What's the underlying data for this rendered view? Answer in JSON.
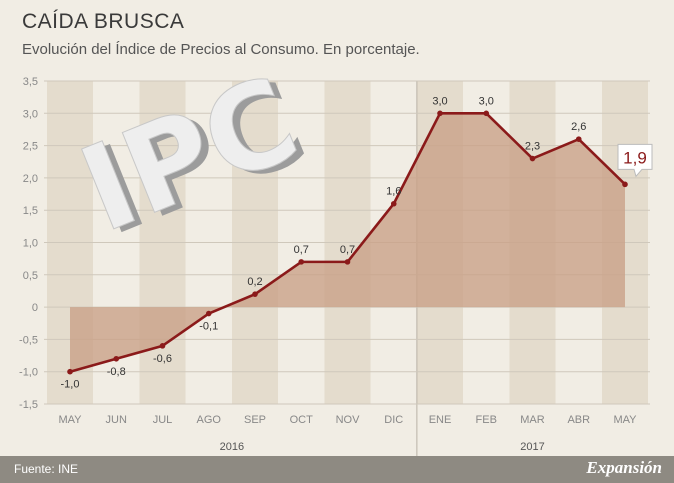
{
  "header": {
    "title": "CAÍDA BRUSCA",
    "subtitle": "Evolución del Índice de Precios al Consumo. En porcentaje."
  },
  "footer": {
    "source": "Fuente: INE",
    "brand": "Expansión"
  },
  "decoration": {
    "text": "IPC"
  },
  "colors": {
    "line": "#8b1a1a",
    "area": "#c9a087",
    "band": "#e4dccd",
    "axis_text": "#888888"
  },
  "chart_data": {
    "type": "area",
    "title": "CAÍDA BRUSCA",
    "subtitle": "Evolución del Índice de Precios al Consumo. En porcentaje.",
    "categories": [
      "MAY",
      "JUN",
      "JUL",
      "AGO",
      "SEP",
      "OCT",
      "NOV",
      "DIC",
      "ENE",
      "FEB",
      "MAR",
      "ABR",
      "MAY"
    ],
    "values": [
      -1.0,
      -0.8,
      -0.6,
      -0.1,
      0.2,
      0.7,
      0.7,
      1.6,
      3.0,
      3.0,
      2.3,
      2.6,
      1.9
    ],
    "value_labels": [
      "-1,0",
      "-0,8",
      "-0,6",
      "-0,1",
      "0,2",
      "0,7",
      "0,7",
      "1,6",
      "3,0",
      "3,0",
      "2,3",
      "2,6",
      "1,9"
    ],
    "highlight_index": 12,
    "y_ticks": [
      3.5,
      3.0,
      2.5,
      2.0,
      1.5,
      1.0,
      0.5,
      0,
      -0.5,
      -1.0,
      -1.5
    ],
    "y_tick_labels": [
      "3,5",
      "3,0",
      "2,5",
      "2,0",
      "1,5",
      "1,0",
      "0,5",
      "0",
      "-0,5",
      "-1,0",
      "-1,5"
    ],
    "ylim": [
      -1.5,
      3.5
    ],
    "years": [
      {
        "label": "2016",
        "start": 0,
        "end": 7
      },
      {
        "label": "2017",
        "start": 8,
        "end": 12
      }
    ],
    "grid": true
  }
}
